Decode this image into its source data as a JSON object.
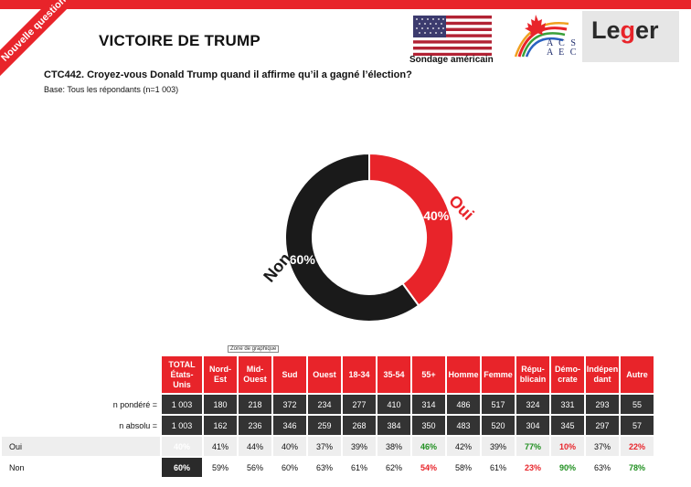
{
  "header": {
    "banner": "Nouvelle question",
    "title": "VICTOIRE DE TRUMP",
    "question": "CTC442. Croyez-vous Donald Trump quand il affirme qu’il a gagné l’élection?",
    "base": "Base: Tous les répondants (n=1 003)",
    "flag_caption": "Sondage américain",
    "acs_line1": "A C S",
    "acs_line2": "A E C",
    "leger_logo": "Leger"
  },
  "colors": {
    "oui": "#e8242a",
    "non": "#1a1a1a",
    "green": "#1f8f1f"
  },
  "chart_data": {
    "type": "pie",
    "donut": true,
    "slices": [
      {
        "label": "Oui",
        "value": 40,
        "display": "40%",
        "color": "#e8242a"
      },
      {
        "label": "Non",
        "value": 60,
        "display": "60%",
        "color": "#1a1a1a"
      }
    ]
  },
  "tooltip": "Zone de graphique",
  "table": {
    "columns": [
      "TOTAL États-Unis",
      "Nord-Est",
      "Mid-Ouest",
      "Sud",
      "Ouest",
      "18-34",
      "35-54",
      "55+",
      "Homme",
      "Femme",
      "Répu-blicain",
      "Démo-crate",
      "Indépen dant",
      "Autre"
    ],
    "rows": [
      {
        "label": "n pondéré =",
        "style": "dark",
        "cells": [
          "1 003",
          "180",
          "218",
          "372",
          "234",
          "277",
          "410",
          "314",
          "486",
          "517",
          "324",
          "331",
          "293",
          "55"
        ]
      },
      {
        "label": "n absolu =",
        "style": "dark",
        "cells": [
          "1 003",
          "162",
          "236",
          "346",
          "259",
          "268",
          "384",
          "350",
          "483",
          "520",
          "304",
          "345",
          "297",
          "57"
        ]
      },
      {
        "label": "Oui",
        "style": "gray",
        "cells": [
          "40%",
          "41%",
          "44%",
          "40%",
          "37%",
          "39%",
          "38%",
          "46%",
          "42%",
          "39%",
          "77%",
          "10%",
          "37%",
          "22%"
        ],
        "highlight": [
          "",
          "",
          "",
          "",
          "",
          "",
          "",
          "green",
          "",
          "",
          "green",
          "red",
          "",
          "red"
        ]
      },
      {
        "label": "Non",
        "style": "white",
        "cells": [
          "60%",
          "59%",
          "56%",
          "60%",
          "63%",
          "61%",
          "62%",
          "54%",
          "58%",
          "61%",
          "23%",
          "90%",
          "63%",
          "78%"
        ],
        "highlight": [
          "",
          "",
          "",
          "",
          "",
          "",
          "",
          "red",
          "",
          "",
          "red",
          "green",
          "",
          "green"
        ]
      }
    ]
  }
}
